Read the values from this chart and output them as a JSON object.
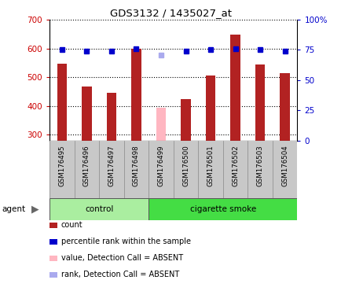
{
  "title": "GDS3132 / 1435027_at",
  "samples": [
    "GSM176495",
    "GSM176496",
    "GSM176497",
    "GSM176498",
    "GSM176499",
    "GSM176500",
    "GSM176501",
    "GSM176502",
    "GSM176503",
    "GSM176504"
  ],
  "count_values": [
    548,
    467,
    445,
    598,
    395,
    425,
    507,
    648,
    543,
    513
  ],
  "count_absent": [
    false,
    false,
    false,
    false,
    true,
    false,
    false,
    false,
    false,
    false
  ],
  "percentile_values": [
    75,
    74,
    74,
    76,
    71,
    74,
    75,
    76,
    75,
    74
  ],
  "percentile_absent": [
    false,
    false,
    false,
    false,
    true,
    false,
    false,
    false,
    false,
    false
  ],
  "ylim_left": [
    280,
    700
  ],
  "ylim_right": [
    0,
    100
  ],
  "yticks_left": [
    300,
    400,
    500,
    600,
    700
  ],
  "yticks_right": [
    0,
    25,
    50,
    75,
    100
  ],
  "bar_width": 0.4,
  "bar_color_normal": "#b22222",
  "bar_color_absent": "#ffb6c1",
  "dot_color_normal": "#0000cc",
  "dot_color_absent": "#aaaaee",
  "plot_bg": "#ffffff",
  "gray_bg": "#c8c8c8",
  "control_color": "#aaeea0",
  "smoke_color": "#44dd44",
  "agent_label": "agent",
  "legend_items": [
    {
      "label": "count",
      "color": "#b22222"
    },
    {
      "label": "percentile rank within the sample",
      "color": "#0000cc"
    },
    {
      "label": "value, Detection Call = ABSENT",
      "color": "#ffb6c1"
    },
    {
      "label": "rank, Detection Call = ABSENT",
      "color": "#aaaaee"
    }
  ]
}
